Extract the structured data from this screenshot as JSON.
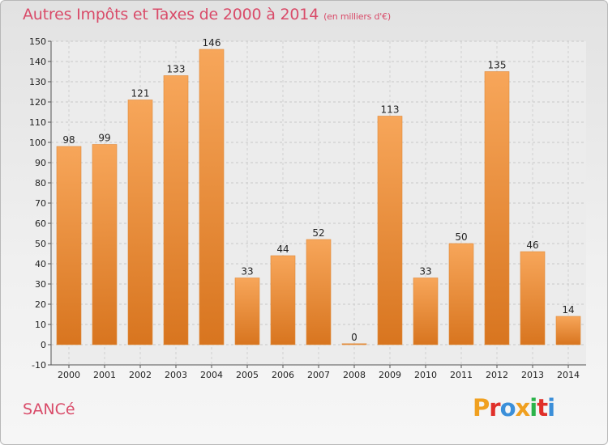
{
  "title": "Autres Impôts et Taxes de 2000 à 2014",
  "subtitle": "(en milliers d'€)",
  "commune": "SANCé",
  "logo": {
    "text": "Proxiti",
    "colors": [
      "#f0a020",
      "#e0302a",
      "#3b8fd9",
      "#f0a020",
      "#2bb34a",
      "#e0302a",
      "#3b8fd9"
    ]
  },
  "colors": {
    "title": "#d94b69",
    "bar_light": "#f7a65a",
    "bar_dark": "#d8751f"
  },
  "chart_data": {
    "type": "bar",
    "title": "Autres Impôts et Taxes de 2000 à 2014",
    "xlabel": "",
    "ylabel": "",
    "categories": [
      "2000",
      "2001",
      "2002",
      "2003",
      "2004",
      "2005",
      "2006",
      "2007",
      "2008",
      "2009",
      "2010",
      "2011",
      "2012",
      "2013",
      "2014"
    ],
    "values": [
      98,
      99,
      121,
      133,
      146,
      33,
      44,
      52,
      0,
      113,
      33,
      50,
      135,
      46,
      14
    ],
    "ylim": [
      -10,
      150
    ],
    "yticks": [
      -10,
      0,
      10,
      20,
      30,
      40,
      50,
      60,
      70,
      80,
      90,
      100,
      110,
      120,
      130,
      140,
      150
    ],
    "grid": true
  }
}
